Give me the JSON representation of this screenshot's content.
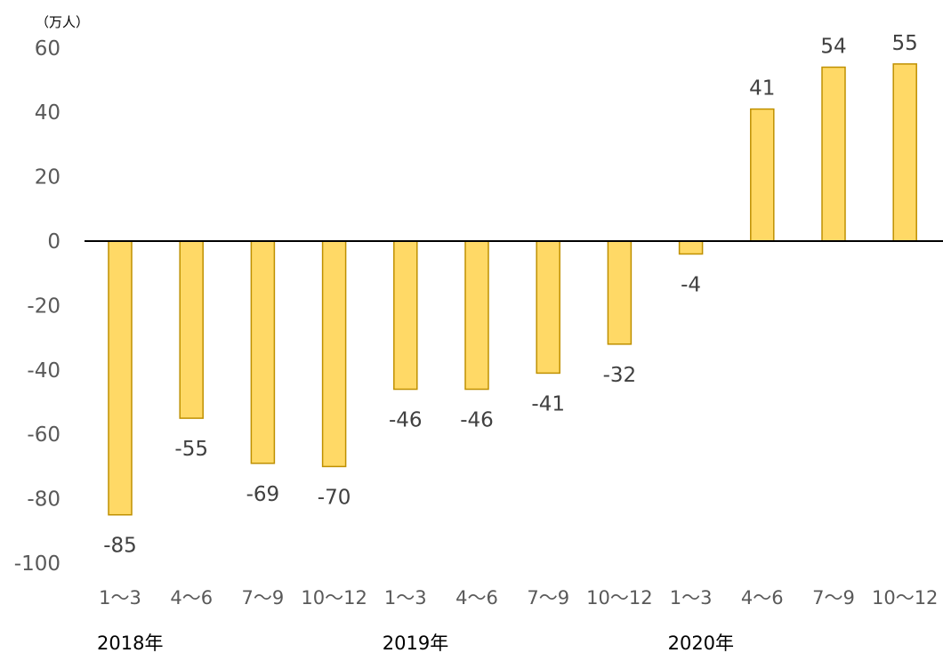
{
  "chart_data": {
    "type": "bar",
    "unit_label": "（万人）",
    "categories": [
      "1～3",
      "4～6",
      "7～9",
      "10～12",
      "1～3",
      "4～6",
      "7～9",
      "10～12",
      "1～3",
      "4～6",
      "7～9",
      "10～12"
    ],
    "year_groups": [
      {
        "label": "2018年",
        "start_index": 0
      },
      {
        "label": "2019年",
        "start_index": 4
      },
      {
        "label": "2020年",
        "start_index": 8
      }
    ],
    "values": [
      -85,
      -55,
      -69,
      -70,
      -46,
      -46,
      -41,
      -32,
      -4,
      41,
      54,
      55
    ],
    "data_labels": [
      "-85",
      "-55",
      "-69",
      "-70",
      "-46",
      "-46",
      "-41",
      "-32",
      "-4",
      "41",
      "54",
      "55"
    ],
    "y_ticks": [
      "60",
      "40",
      "20",
      "0",
      "-20",
      "-40",
      "-60",
      "-80",
      "-100"
    ],
    "ylim": [
      -100,
      60
    ],
    "grid": false,
    "legend": "none",
    "bar_fill": "#FFD966",
    "bar_stroke": "#BF9000",
    "axis_color": "#000000"
  }
}
